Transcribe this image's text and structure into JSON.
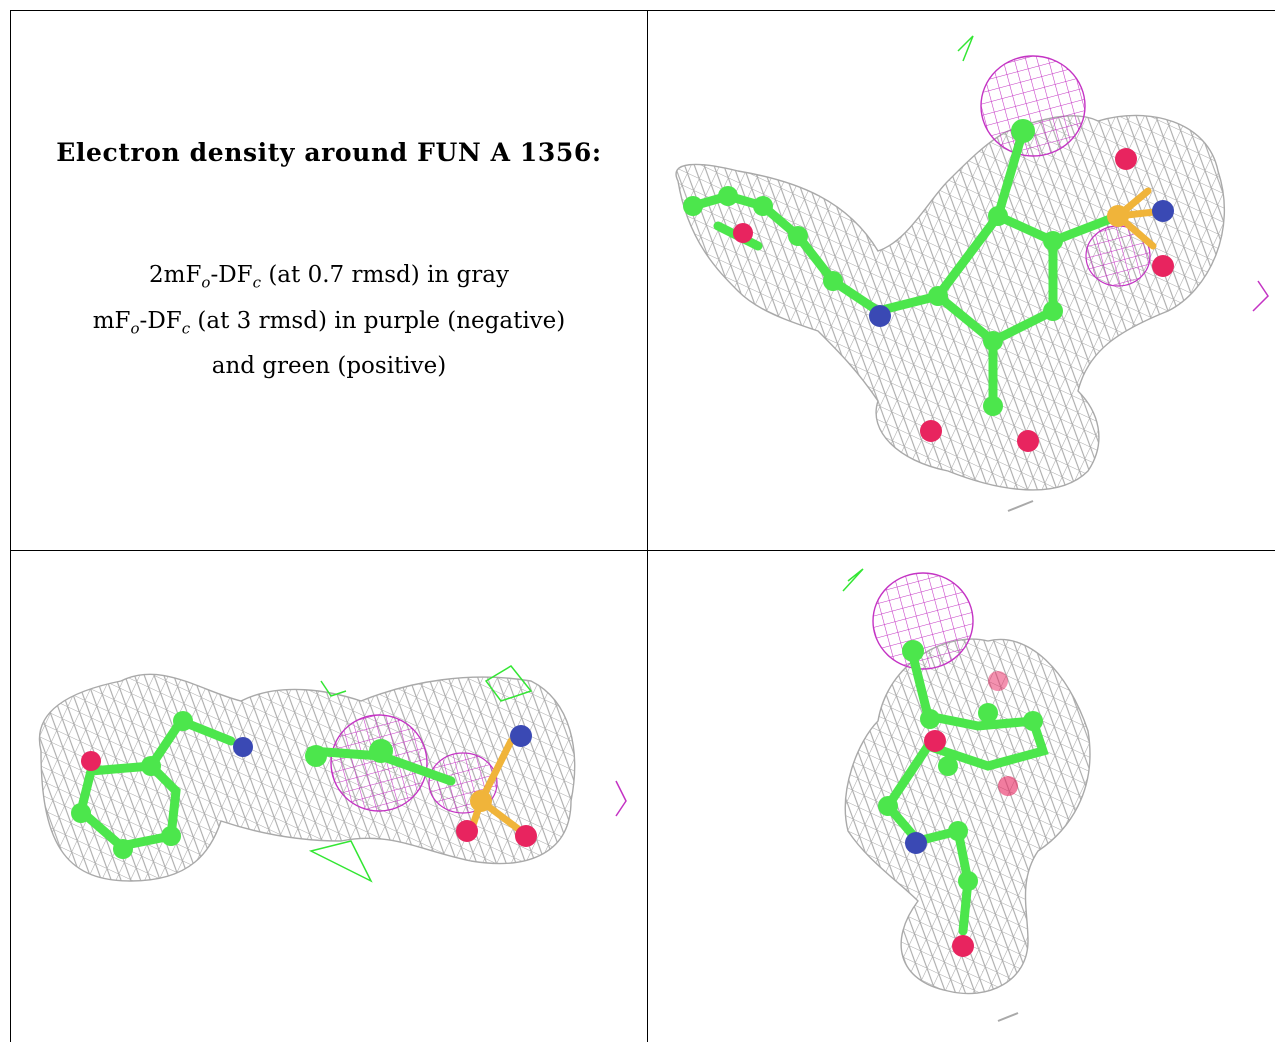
{
  "legend": {
    "title": "Electron density around FUN A 1356:",
    "line1": "2mFₒ-DF𝒸 (at 0.7 rmsd) in gray",
    "line1_parts": {
      "pre": "2mF",
      "sub1": "o",
      "mid": "-DF",
      "sub2": "c",
      "post": " (at 0.7 rmsd) in gray"
    },
    "line2_parts": {
      "pre": "mF",
      "sub1": "o",
      "mid": "-DF",
      "sub2": "c",
      "post": " (at 3 rmsd) in purple (negative)"
    },
    "line3": "and green (positive)"
  },
  "colors": {
    "mesh_gray": "#a9a9a9",
    "mesh_purple": "#c433c4",
    "mesh_green": "#33e633",
    "carbon": "#4ce64c",
    "oxygen": "#e8245f",
    "nitrogen": "#3a49b4",
    "sulfur": "#f0b43a"
  },
  "panels": [
    {
      "name": "view-top-right"
    },
    {
      "name": "view-bottom-left"
    },
    {
      "name": "view-bottom-right"
    }
  ]
}
